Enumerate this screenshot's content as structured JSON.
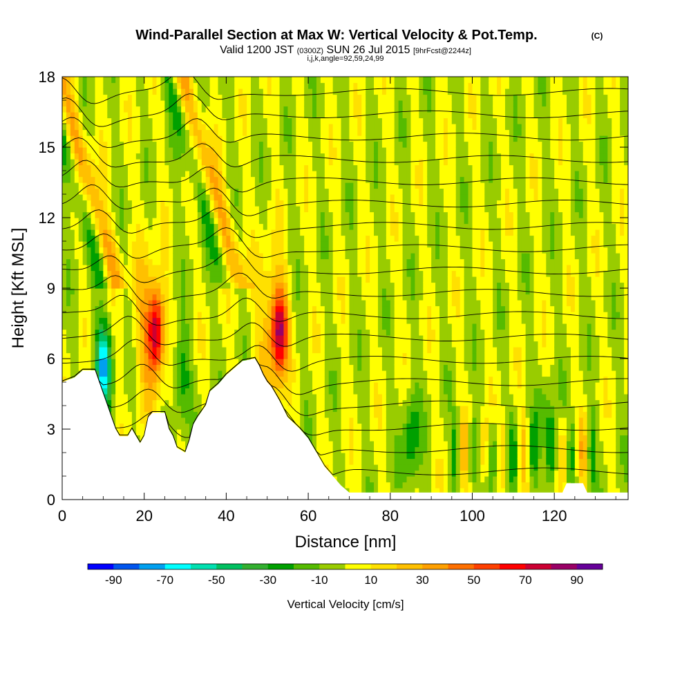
{
  "chart_data": {
    "type": "heatmap",
    "title": "Wind-Parallel Section at Max W: Vertical Velocity & Pot.Temp.",
    "title_tag": "(C)",
    "subtitle": {
      "prefix": "Valid 1200 JST",
      "utc": "(0300Z)",
      "date": "SUN 26 Jul 2015",
      "fcst": "[9hrFcst@2244z]"
    },
    "subtitle2": "i,j,k,angle=92,59,24,99",
    "xlabel": "Distance [nm]",
    "ylabel": "Height [Kft MSL]",
    "xlim": [
      0,
      138
    ],
    "ylim": [
      0,
      18
    ],
    "xticks": [
      0,
      20,
      40,
      60,
      80,
      100,
      120
    ],
    "yticks": [
      0,
      3,
      6,
      9,
      12,
      15,
      18
    ],
    "colorbar": {
      "label": "Vertical Velocity [cm/s]",
      "tick_labels": [
        -90,
        -70,
        -50,
        -30,
        -10,
        10,
        30,
        50,
        70,
        90
      ],
      "bins": [
        -100,
        -90,
        -80,
        -70,
        -60,
        -50,
        -40,
        -30,
        -20,
        -10,
        0,
        10,
        20,
        30,
        40,
        50,
        60,
        70,
        80,
        90,
        100
      ],
      "colors": [
        "#0000ff",
        "#0055ee",
        "#00a0f0",
        "#00ffff",
        "#00e0b0",
        "#00c060",
        "#33b030",
        "#00a000",
        "#55bb00",
        "#99cc00",
        "#ffff00",
        "#ffe000",
        "#ffc000",
        "#ffa000",
        "#ff7000",
        "#ff4000",
        "#ff0000",
        "#cc0033",
        "#990066",
        "#660099"
      ]
    },
    "updrafts": [
      {
        "x": 23,
        "z_bottom": 5,
        "z_top": 18,
        "peak_w": 75
      },
      {
        "x": 53,
        "z_bottom": 5,
        "z_top": 18,
        "peak_w": 75
      }
    ],
    "downdrafts": [
      {
        "x": 10,
        "z_bottom": 4.5,
        "z_top": 7,
        "peak_w": -70
      },
      {
        "x": 29,
        "z_bottom": 4,
        "z_top": 6.5,
        "peak_w": -30
      },
      {
        "x": 85,
        "z_bottom": 1,
        "z_top": 4,
        "peak_w": -30
      },
      {
        "x": 118,
        "z_bottom": 1,
        "z_top": 4,
        "peak_w": -30
      }
    ],
    "terrain": [
      [
        0,
        5
      ],
      [
        3,
        5.2
      ],
      [
        5,
        5.5
      ],
      [
        8,
        5.5
      ],
      [
        9,
        5
      ],
      [
        10,
        4.5
      ],
      [
        11,
        4
      ],
      [
        12,
        3.5
      ],
      [
        13,
        3
      ],
      [
        14,
        2.7
      ],
      [
        16,
        2.7
      ],
      [
        17,
        3
      ],
      [
        18,
        2.7
      ],
      [
        19,
        2.4
      ],
      [
        20,
        2.7
      ],
      [
        21,
        3.5
      ],
      [
        22,
        3.7
      ],
      [
        25,
        3.7
      ],
      [
        26,
        3
      ],
      [
        27,
        2.7
      ],
      [
        28,
        2.2
      ],
      [
        30,
        2
      ],
      [
        31,
        2.5
      ],
      [
        32,
        3.2
      ],
      [
        33,
        3.5
      ],
      [
        35,
        4
      ],
      [
        36,
        4.6
      ],
      [
        38,
        4.9
      ],
      [
        40,
        5.3
      ],
      [
        42,
        5.6
      ],
      [
        44,
        5.9
      ],
      [
        47,
        6
      ],
      [
        48,
        5.7
      ],
      [
        49,
        5.3
      ],
      [
        50,
        5
      ],
      [
        51,
        4.8
      ],
      [
        53,
        4.2
      ],
      [
        55,
        3.5
      ],
      [
        58,
        3
      ],
      [
        60,
        2.6
      ],
      [
        62,
        2
      ],
      [
        64,
        1.4
      ],
      [
        66,
        1
      ],
      [
        68,
        0.6
      ],
      [
        70,
        0.3
      ],
      [
        72,
        0.3
      ],
      [
        122,
        0.3
      ],
      [
        123,
        0.7
      ],
      [
        127,
        0.7
      ],
      [
        128,
        0.3
      ],
      [
        138,
        0.3
      ]
    ],
    "theta_levels": [
      300,
      302,
      304,
      306,
      308,
      310,
      312,
      314,
      316,
      318,
      320,
      322,
      324,
      326,
      328,
      330,
      332,
      334
    ]
  }
}
